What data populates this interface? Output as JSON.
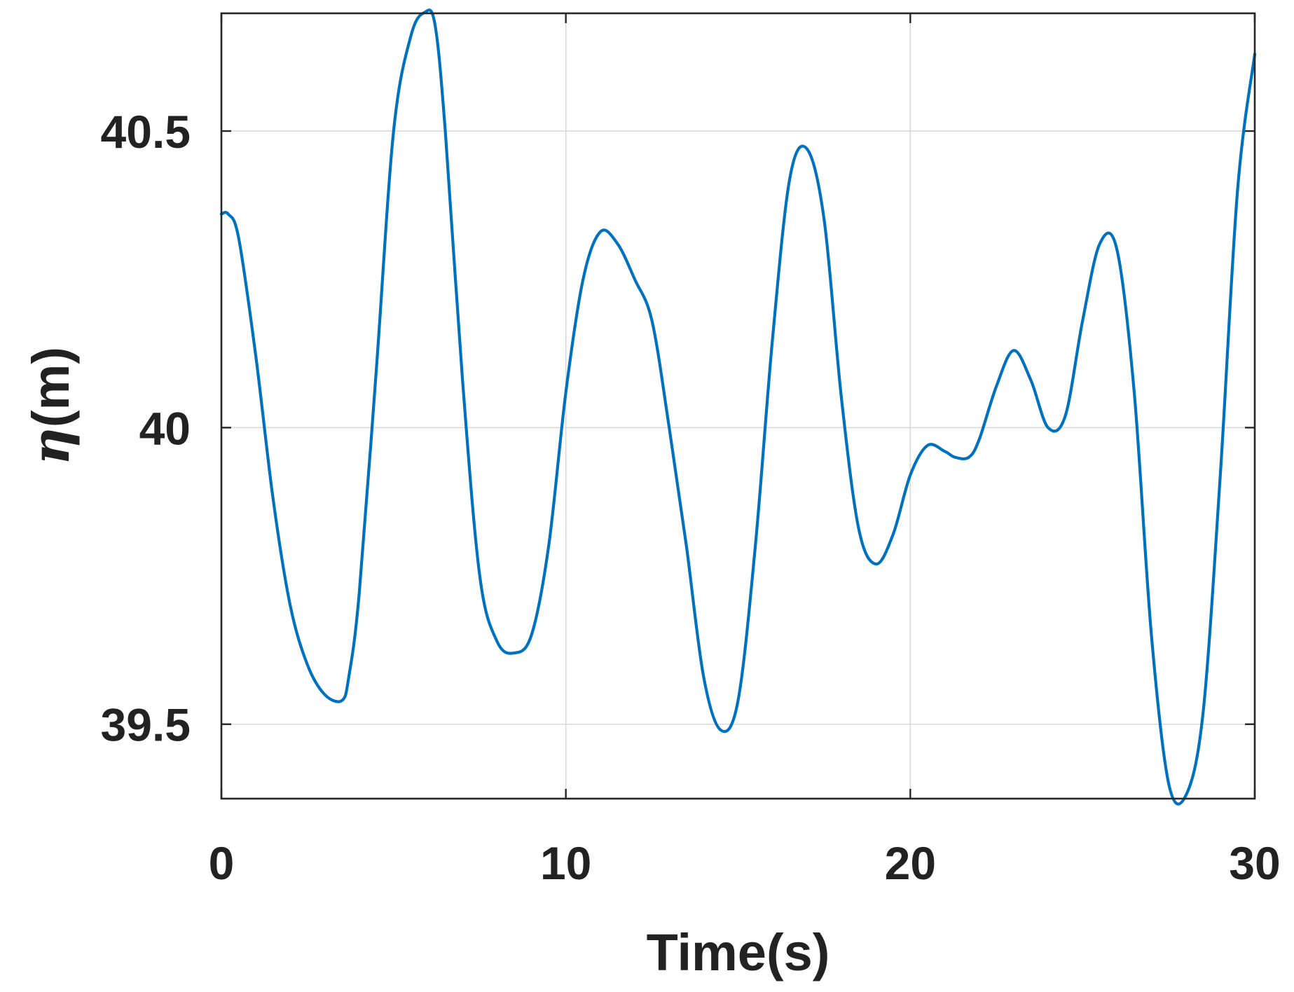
{
  "chart_data": {
    "type": "line",
    "title": "",
    "xlabel": "Time(s)",
    "ylabel": {
      "symbol": "η",
      "unit": "(m)"
    },
    "xlim": [
      0,
      30
    ],
    "ylim": [
      39.3745,
      40.6985
    ],
    "xticks": [
      0,
      10,
      20,
      30
    ],
    "xtick_labels": [
      "0",
      "10",
      "20",
      "30"
    ],
    "yticks": [
      39.5,
      40,
      40.5
    ],
    "ytick_labels": [
      "39.5",
      "40",
      "40.5"
    ],
    "grid": true,
    "series": [
      {
        "color": "#0072BD",
        "x": [
          0,
          0.2,
          0.5,
          1.0,
          1.5,
          2.0,
          2.5,
          3.0,
          3.5,
          3.7,
          4.0,
          4.5,
          5.0,
          5.5,
          5.9,
          6.2,
          6.5,
          7.0,
          7.5,
          8.0,
          8.5,
          9.0,
          9.5,
          10.0,
          10.5,
          11.0,
          11.5,
          12.0,
          12.5,
          13.0,
          13.5,
          14.0,
          14.5,
          15.0,
          15.5,
          16.0,
          16.5,
          17.0,
          17.5,
          18.0,
          18.5,
          19.0,
          19.5,
          20.0,
          20.5,
          21.0,
          21.3,
          21.7,
          22.0,
          22.5,
          23.0,
          23.5,
          24.0,
          24.5,
          25.0,
          25.5,
          26.0,
          26.5,
          27.0,
          27.5,
          28.0,
          28.5,
          29.0,
          29.5,
          30.0
        ],
        "values": [
          40.36,
          40.36,
          40.32,
          40.12,
          39.88,
          39.7,
          39.6,
          39.55,
          39.54,
          39.58,
          39.72,
          40.1,
          40.5,
          40.66,
          40.7,
          40.68,
          40.5,
          40.08,
          39.75,
          39.64,
          39.62,
          39.65,
          39.8,
          40.06,
          40.25,
          40.33,
          40.31,
          40.25,
          40.18,
          40.0,
          39.8,
          39.58,
          39.49,
          39.54,
          39.8,
          40.15,
          40.42,
          40.47,
          40.35,
          40.05,
          39.83,
          39.77,
          39.82,
          39.92,
          39.97,
          39.96,
          39.95,
          39.95,
          39.98,
          40.07,
          40.13,
          40.08,
          40.0,
          40.02,
          40.18,
          40.31,
          40.3,
          40.06,
          39.65,
          39.4,
          39.38,
          39.52,
          39.92,
          40.4,
          40.63
        ]
      }
    ]
  }
}
